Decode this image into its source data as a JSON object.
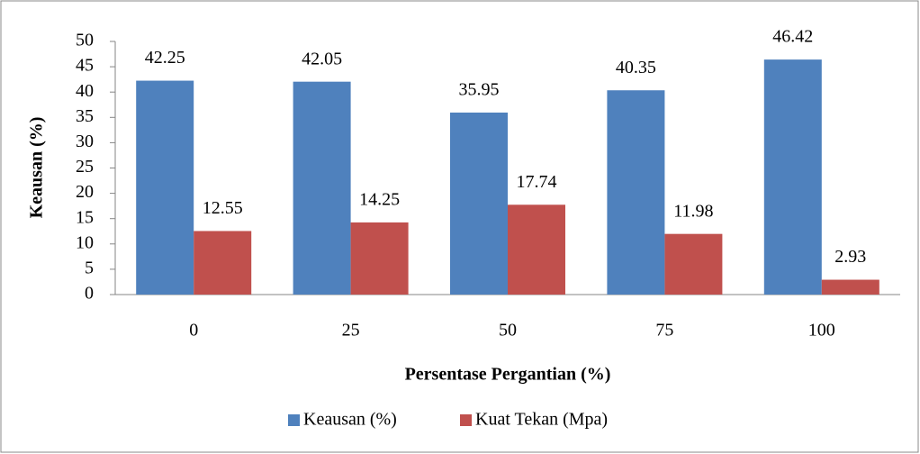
{
  "chart_data": {
    "type": "bar",
    "categories": [
      "0",
      "25",
      "50",
      "75",
      "100"
    ],
    "series": [
      {
        "name": "Keausan (%)",
        "color": "#4f81bd",
        "values": [
          42.25,
          42.05,
          35.95,
          40.35,
          46.42
        ]
      },
      {
        "name": "Kuat Tekan (Mpa)",
        "color": "#c0504d",
        "values": [
          12.55,
          14.25,
          17.74,
          11.98,
          2.93
        ]
      }
    ],
    "ylim": [
      0,
      50
    ],
    "yticks": [
      0,
      5,
      10,
      15,
      20,
      25,
      30,
      35,
      40,
      45,
      50
    ],
    "ylabel": "Keausan (%)",
    "xlabel": "Persentase Pergantian (%)",
    "grid": false,
    "legend": "bottom"
  }
}
